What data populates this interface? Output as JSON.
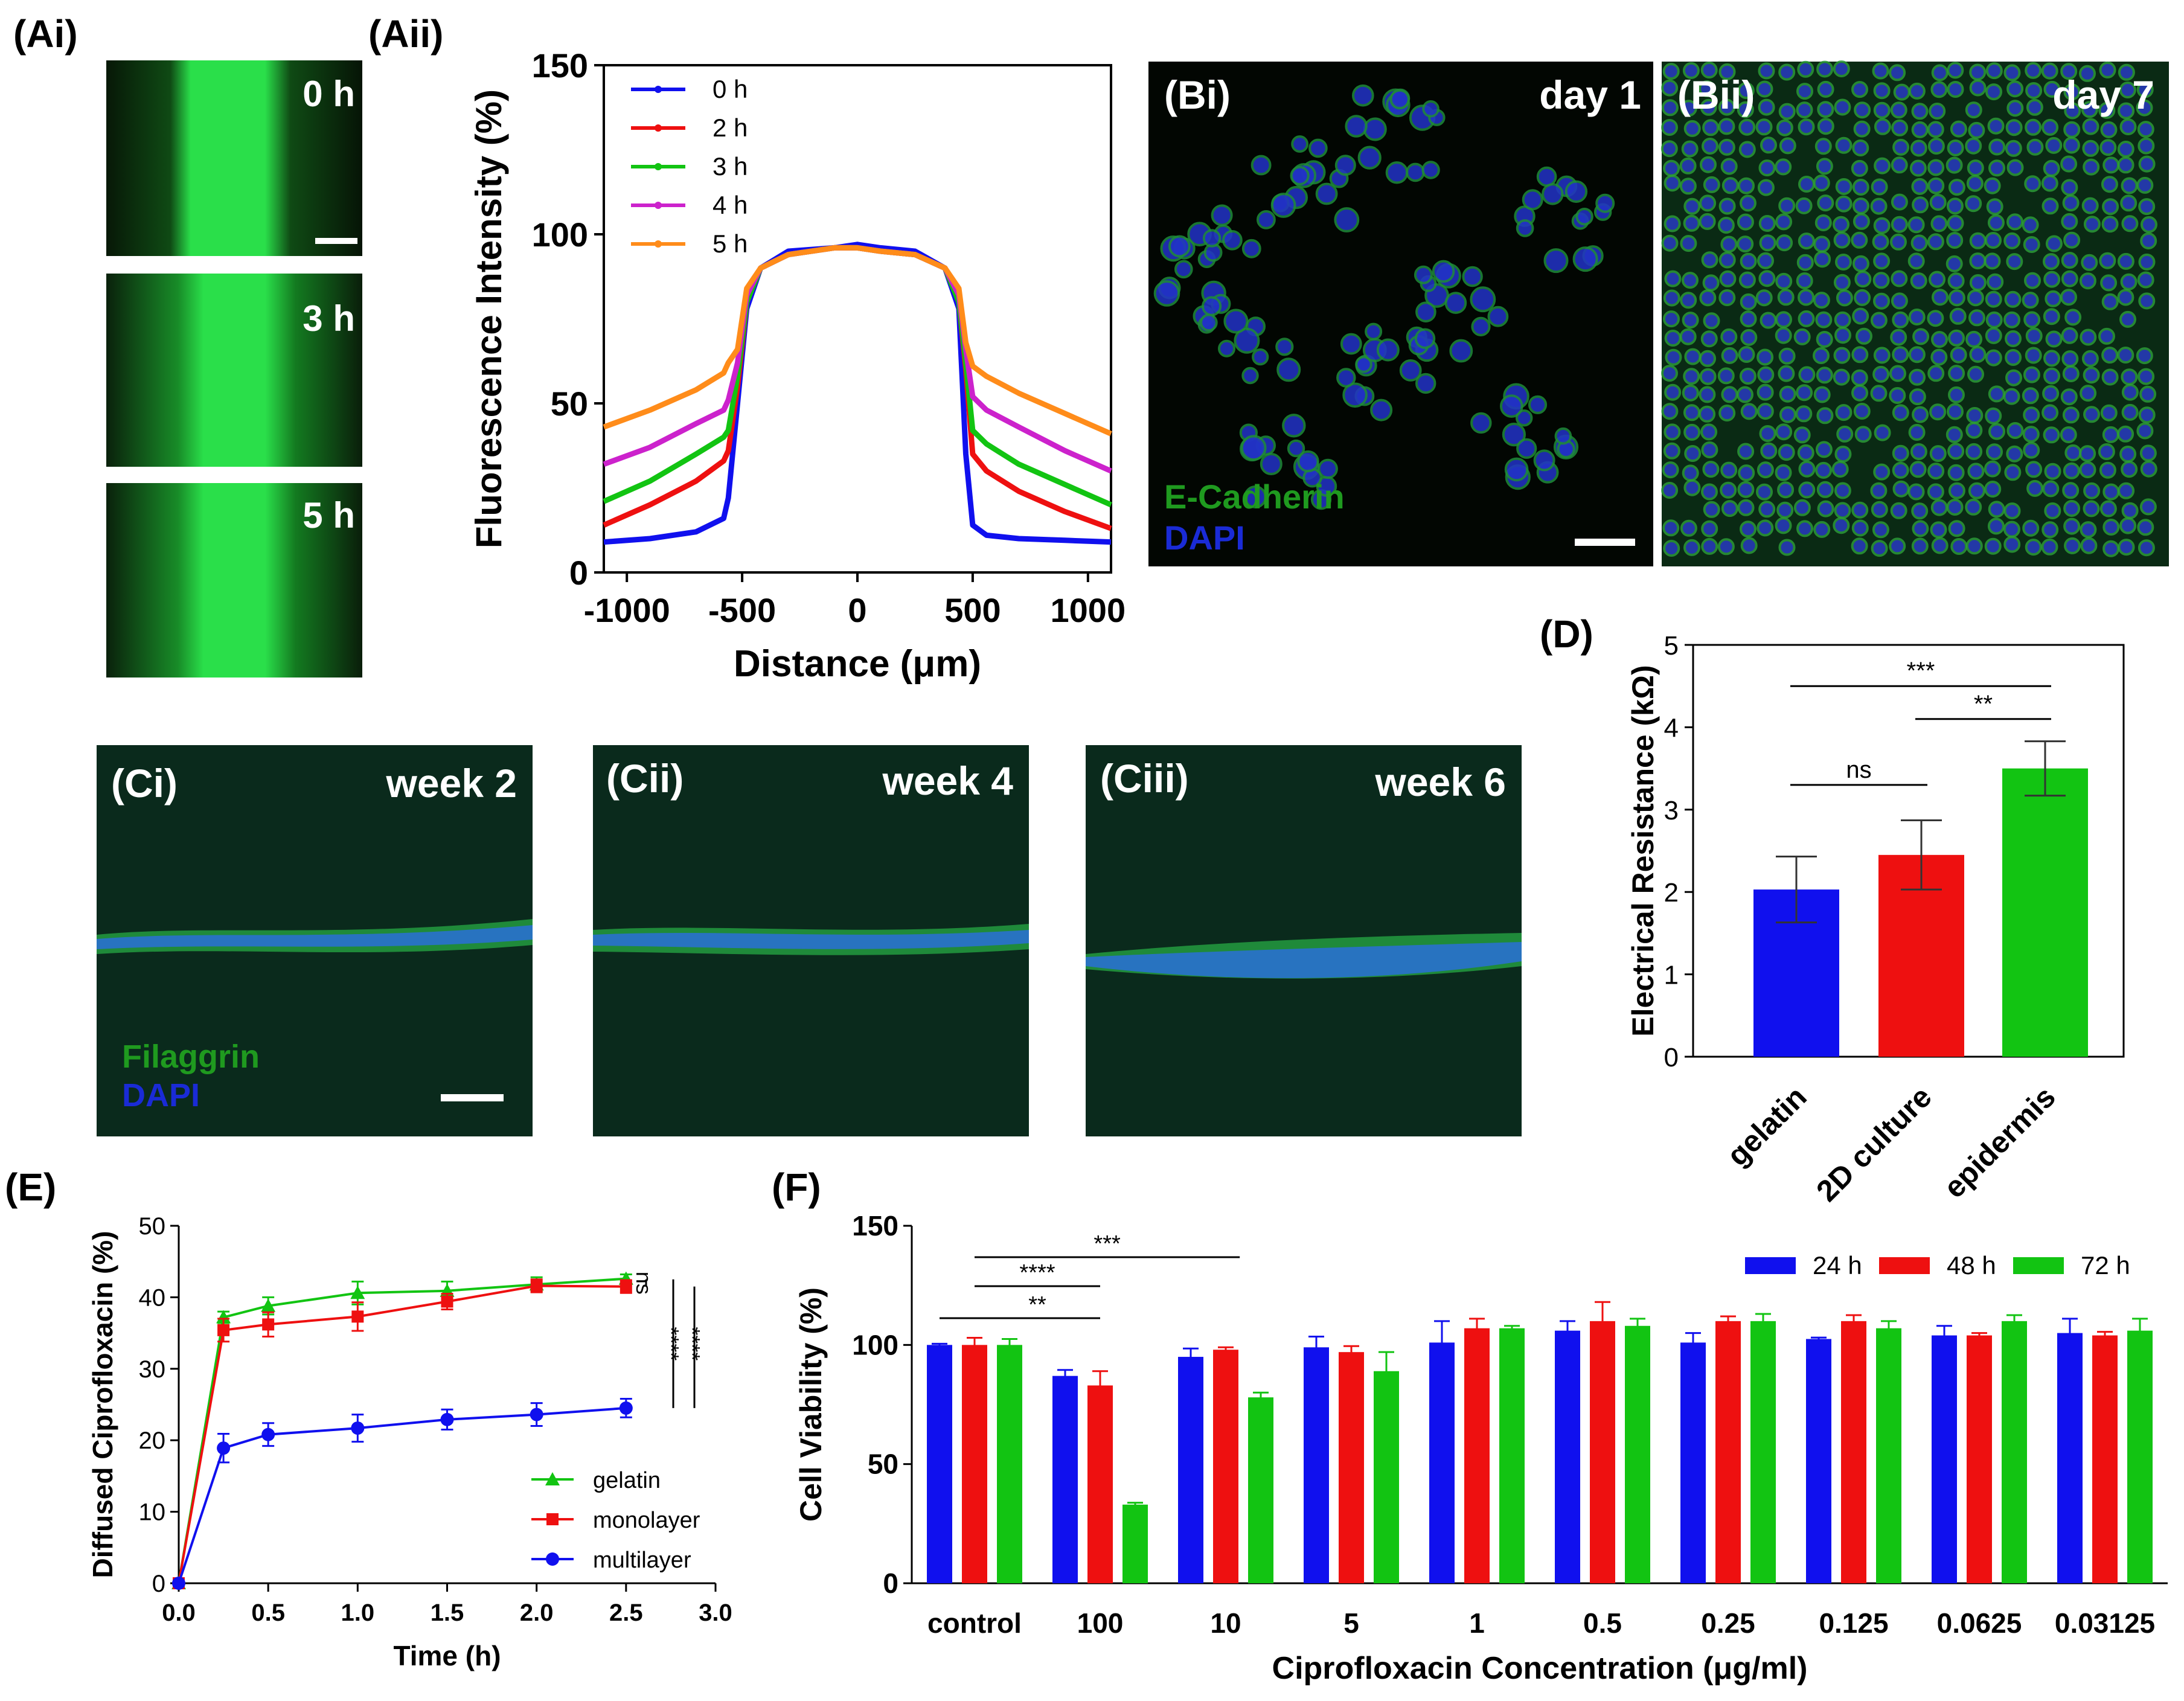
{
  "panel_labels": {
    "ai": "(Ai)",
    "aii": "(Aii)",
    "bi": "(Bi)",
    "bii": "(Bii)",
    "ci": "(Ci)",
    "cii": "(Cii)",
    "ciii": "(Ciii)",
    "d": "(D)",
    "e": "(E)",
    "f": "(F)"
  },
  "images": {
    "ai_times": [
      "0 h",
      "3 h",
      "5 h"
    ],
    "bi_day": "day 1",
    "bii_day": "day 7",
    "b_stain1": "E-Cadherin",
    "b_stain2": "DAPI",
    "c_weeks": [
      "week 2",
      "week 4",
      "week 6"
    ],
    "c_stain1": "Filaggrin",
    "c_stain2": "DAPI"
  },
  "colors": {
    "blue": "#1010ee",
    "red": "#ee1010",
    "green": "#12c412",
    "magenta": "#cc22cc",
    "orange": "#ff8c1a",
    "micro_green": "#2adf4a",
    "stain_green": "#1f9a1f",
    "stain_blue": "#1a2bd6"
  },
  "chart_data": [
    {
      "id": "Aii",
      "type": "line",
      "title": "",
      "xlabel": "Distance (μm)",
      "ylabel": "Fluorescence Intensity (%)",
      "xlim": [
        -1100,
        1100
      ],
      "ylim": [
        0,
        150
      ],
      "xticks": [
        -1000,
        -500,
        0,
        500,
        1000
      ],
      "yticks": [
        0,
        50,
        100,
        150
      ],
      "x": [
        -1100,
        -900,
        -700,
        -580,
        -560,
        -520,
        -480,
        -420,
        -300,
        -100,
        0,
        100,
        250,
        380,
        440,
        470,
        500,
        560,
        700,
        900,
        1100
      ],
      "series": [
        {
          "name": "0 h",
          "color": "blue",
          "values": [
            9,
            10,
            12,
            16,
            22,
            50,
            78,
            90,
            95,
            96,
            97,
            96,
            95,
            90,
            78,
            35,
            14,
            11,
            10,
            9.5,
            9
          ]
        },
        {
          "name": "2 h",
          "color": "red",
          "values": [
            14,
            20,
            27,
            33,
            36,
            55,
            80,
            90,
            94,
            96,
            96,
            95,
            94,
            90,
            80,
            60,
            35,
            30,
            24,
            18,
            13
          ]
        },
        {
          "name": "3 h",
          "color": "green",
          "values": [
            21,
            27,
            35,
            40,
            42,
            58,
            80,
            90,
            94,
            96,
            96,
            95,
            94,
            90,
            80,
            62,
            42,
            38,
            32,
            26,
            20
          ]
        },
        {
          "name": "4 h",
          "color": "magenta",
          "values": [
            32,
            37,
            44,
            48,
            51,
            62,
            82,
            90,
            94,
            96,
            96,
            95,
            94,
            90,
            82,
            66,
            52,
            48,
            43,
            36,
            30
          ]
        },
        {
          "name": "5 h",
          "color": "orange",
          "values": [
            43,
            48,
            54,
            59,
            62,
            66,
            84,
            90,
            94,
            96,
            96,
            95,
            94,
            90,
            84,
            68,
            61,
            58,
            53,
            47,
            41
          ]
        }
      ]
    },
    {
      "id": "D",
      "type": "bar",
      "title": "",
      "xlabel": "",
      "ylabel": "Electrical Resistance (kΩ)",
      "ylim": [
        0,
        5
      ],
      "yticks": [
        0,
        1,
        2,
        3,
        4,
        5
      ],
      "categories": [
        "gelatin",
        "2D culture",
        "epidermis"
      ],
      "values": [
        2.03,
        2.45,
        3.5
      ],
      "errors": [
        0.4,
        0.42,
        0.33
      ],
      "bar_colors": [
        "blue",
        "red",
        "green"
      ],
      "significance": [
        {
          "from": 0,
          "to": 2,
          "label": "***",
          "y": 4.5
        },
        {
          "from": 1,
          "to": 2,
          "label": "**",
          "y": 4.1
        },
        {
          "from": 0,
          "to": 1,
          "label": "ns",
          "y": 3.3
        }
      ]
    },
    {
      "id": "E",
      "type": "line",
      "title": "",
      "xlabel": "Time (h)",
      "ylabel": "Diffused Ciprofloxacin (%)",
      "xlim": [
        0,
        3
      ],
      "ylim": [
        0,
        50
      ],
      "xticks": [
        "0.0",
        "0.5",
        "1.0",
        "1.5",
        "2.0",
        "2.5",
        "3.0"
      ],
      "yticks": [
        0,
        10,
        20,
        30,
        40,
        50
      ],
      "x": [
        0,
        0.25,
        0.5,
        1.0,
        1.5,
        2.0,
        2.5
      ],
      "series": [
        {
          "name": "gelatin",
          "color": "green",
          "marker": "triangle",
          "values": [
            0,
            37.2,
            38.8,
            40.6,
            40.9,
            41.8,
            42.6
          ],
          "errors": [
            0,
            0.8,
            1.2,
            1.6,
            1.3,
            1.0,
            0.6
          ]
        },
        {
          "name": "monolayer",
          "color": "red",
          "marker": "square",
          "values": [
            0,
            35.4,
            36.2,
            37.3,
            39.4,
            41.6,
            41.5
          ],
          "errors": [
            0,
            1.6,
            1.7,
            2.0,
            1.1,
            0.9,
            0.9
          ]
        },
        {
          "name": "multilayer",
          "color": "blue",
          "marker": "circle",
          "values": [
            0,
            18.9,
            20.8,
            21.7,
            22.9,
            23.6,
            24.5
          ],
          "errors": [
            0,
            2.0,
            1.6,
            1.9,
            1.4,
            1.6,
            1.3
          ]
        }
      ],
      "significance": [
        "ns",
        "****",
        "****"
      ]
    },
    {
      "id": "F",
      "type": "bar",
      "title": "",
      "xlabel": "Ciprofloxacin Concentration (μg/ml)",
      "ylabel": "Cell Viability (%)",
      "ylim": [
        0,
        150
      ],
      "yticks": [
        0,
        50,
        100,
        150
      ],
      "categories": [
        "control",
        "100",
        "10",
        "5",
        "1",
        "0.5",
        "0.25",
        "0.125",
        "0.0625",
        "0.03125"
      ],
      "series": [
        {
          "name": "24 h",
          "color": "blue",
          "values": [
            100,
            87,
            95,
            99,
            101,
            106,
            101,
            102.5,
            104,
            105
          ],
          "errors": [
            0.5,
            2.5,
            3.5,
            4.5,
            9,
            4,
            4,
            0.6,
            4,
            6
          ]
        },
        {
          "name": "48 h",
          "color": "red",
          "values": [
            100,
            83,
            98,
            97,
            107,
            110,
            110,
            110,
            104,
            104
          ],
          "errors": [
            3,
            6,
            1,
            2.5,
            4,
            8,
            2,
            2.5,
            1,
            1.5
          ]
        },
        {
          "name": "72 h",
          "color": "green",
          "values": [
            100,
            33,
            78,
            89,
            107,
            108,
            110,
            107,
            110,
            106
          ],
          "errors": [
            2.5,
            0.8,
            2,
            8,
            1,
            3,
            3,
            3,
            2.5,
            5
          ]
        }
      ],
      "significance": [
        {
          "label": "**",
          "from_cat": 0,
          "to_cat": 1,
          "level": 0
        },
        {
          "label": "****",
          "from_cat": 0,
          "to_cat": 1,
          "level": 1
        },
        {
          "label": "***",
          "from_cat": 0,
          "to_cat": 2,
          "level": 2
        }
      ]
    }
  ]
}
